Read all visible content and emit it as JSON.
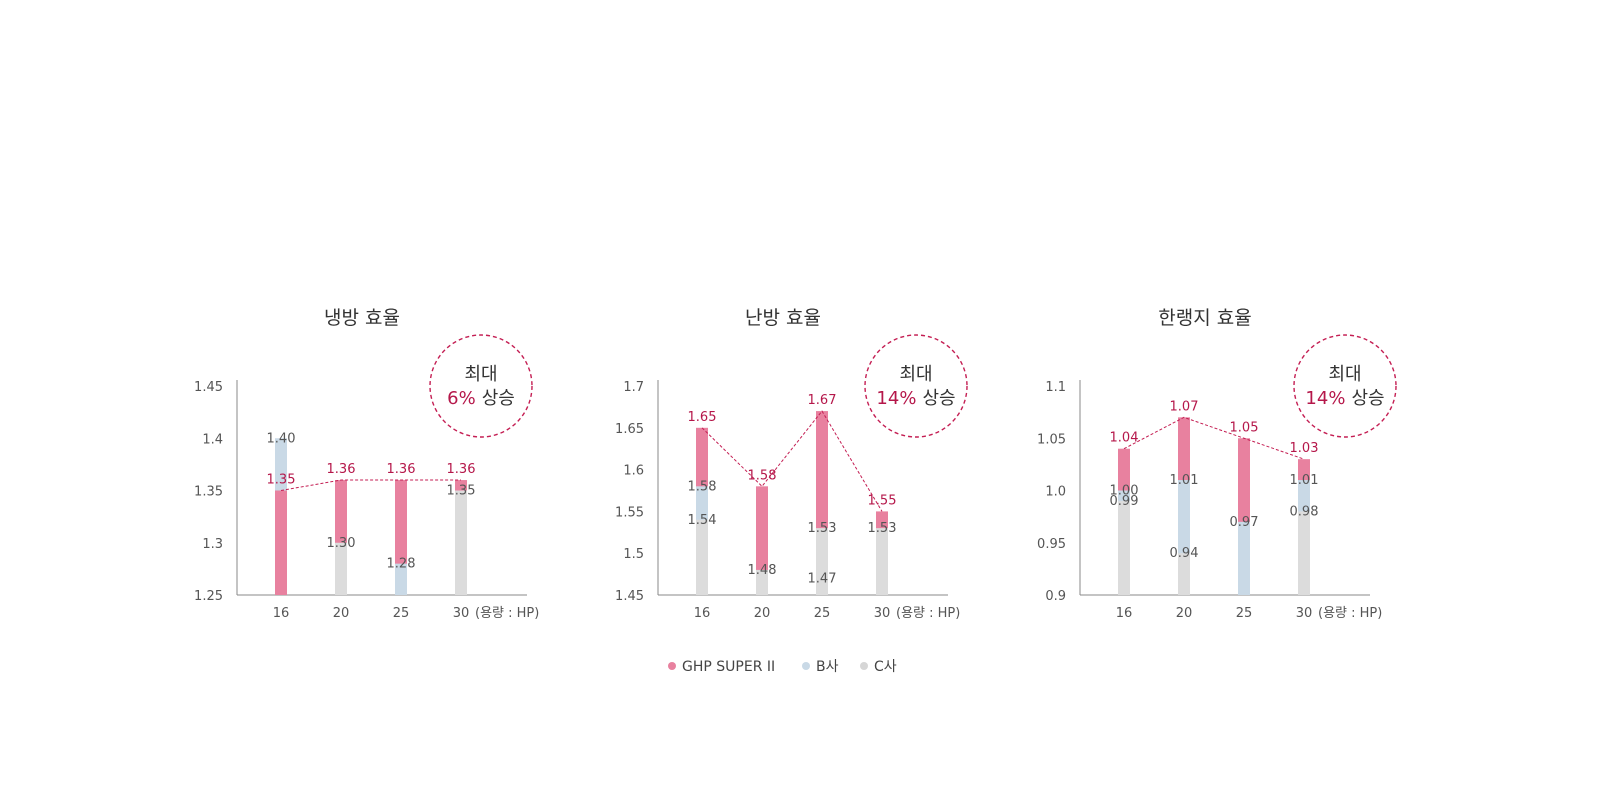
{
  "chart_data": [
    {
      "type": "bar",
      "title": "냉방 효율",
      "categories": [
        "16",
        "20",
        "25",
        "30"
      ],
      "x_unit_label": "(용량 : HP)",
      "ylim": [
        1.25,
        1.45
      ],
      "yticks": [
        "1.45",
        "1.4",
        "1.35",
        "1.3",
        "1.25"
      ],
      "yticks_values": [
        1.45,
        1.4,
        1.35,
        1.3,
        1.25
      ],
      "series": [
        {
          "name": "GHP SUPER II",
          "values": [
            1.35,
            1.36,
            1.36,
            1.36
          ],
          "labels": [
            "1.35",
            "1.36",
            "1.36",
            "1.36"
          ]
        },
        {
          "name": "B사",
          "values": [
            1.4,
            null,
            1.28,
            null
          ],
          "labels": [
            "1.40",
            "",
            "1.28",
            ""
          ]
        },
        {
          "name": "C사",
          "values": [
            null,
            1.3,
            null,
            1.35
          ],
          "labels": [
            "",
            "1.30",
            "",
            "1.35"
          ]
        }
      ],
      "badge": {
        "line1": "최대",
        "percent": "6%",
        "rest": "상승"
      }
    },
    {
      "type": "bar",
      "title": "난방 효율",
      "categories": [
        "16",
        "20",
        "25",
        "30"
      ],
      "x_unit_label": "(용량 : HP)",
      "ylim": [
        1.45,
        1.7
      ],
      "yticks": [
        "1.7",
        "1.65",
        "1.6",
        "1.55",
        "1.5",
        "1.45"
      ],
      "yticks_values": [
        1.7,
        1.65,
        1.6,
        1.55,
        1.5,
        1.45
      ],
      "series": [
        {
          "name": "GHP SUPER II",
          "values": [
            1.65,
            1.58,
            1.67,
            1.55
          ],
          "labels": [
            "1.65",
            "1.58",
            "1.67",
            "1.55"
          ]
        },
        {
          "name": "B사",
          "values": [
            1.58,
            null,
            null,
            null
          ],
          "labels": [
            "1.58",
            "",
            "",
            ""
          ]
        },
        {
          "name": "C사",
          "values": [
            1.54,
            1.48,
            1.53,
            1.53
          ],
          "labels": [
            "1.54",
            "1.48",
            "1.53",
            "1.53"
          ]
        },
        {
          "name": "C사",
          "values": [
            null,
            null,
            1.47,
            null
          ],
          "labels": [
            "",
            "",
            "1.47",
            ""
          ]
        }
      ],
      "badge": {
        "line1": "최대",
        "percent": "14%",
        "rest": "상승"
      }
    },
    {
      "type": "bar",
      "title": "한랭지 효율",
      "categories": [
        "16",
        "20",
        "25",
        "30"
      ],
      "x_unit_label": "(용량 : HP)",
      "ylim": [
        0.9,
        1.1
      ],
      "yticks": [
        "1.1",
        "1.05",
        "1.0",
        "0.95",
        "0.9"
      ],
      "yticks_values": [
        1.1,
        1.05,
        1.0,
        0.95,
        0.9
      ],
      "series": [
        {
          "name": "GHP SUPER II",
          "values": [
            1.04,
            1.07,
            1.05,
            1.03
          ],
          "labels": [
            "1.04",
            "1.07",
            "1.05",
            "1.03"
          ]
        },
        {
          "name": "B사",
          "values": [
            1.0,
            1.01,
            0.97,
            1.01
          ],
          "labels": [
            "1.00",
            "1.01",
            "0.97",
            "1.01"
          ]
        },
        {
          "name": "C사",
          "values": [
            0.99,
            0.94,
            null,
            0.98
          ],
          "labels": [
            "0.99",
            "0.94",
            "",
            "0.98"
          ]
        }
      ],
      "badge": {
        "line1": "최대",
        "percent": "14%",
        "rest": "상승"
      }
    }
  ],
  "legend": [
    {
      "label": "GHP SUPER II",
      "color": "#e8819f"
    },
    {
      "label": "B사",
      "color": "#c9d9e6"
    },
    {
      "label": "C사",
      "color": "#d6d6d6"
    }
  ],
  "colors": {
    "ghp": "#e8819f",
    "b": "#c9d9e6",
    "c": "#dcdcdc",
    "accent": "#c41e53",
    "axis": "#888888"
  }
}
